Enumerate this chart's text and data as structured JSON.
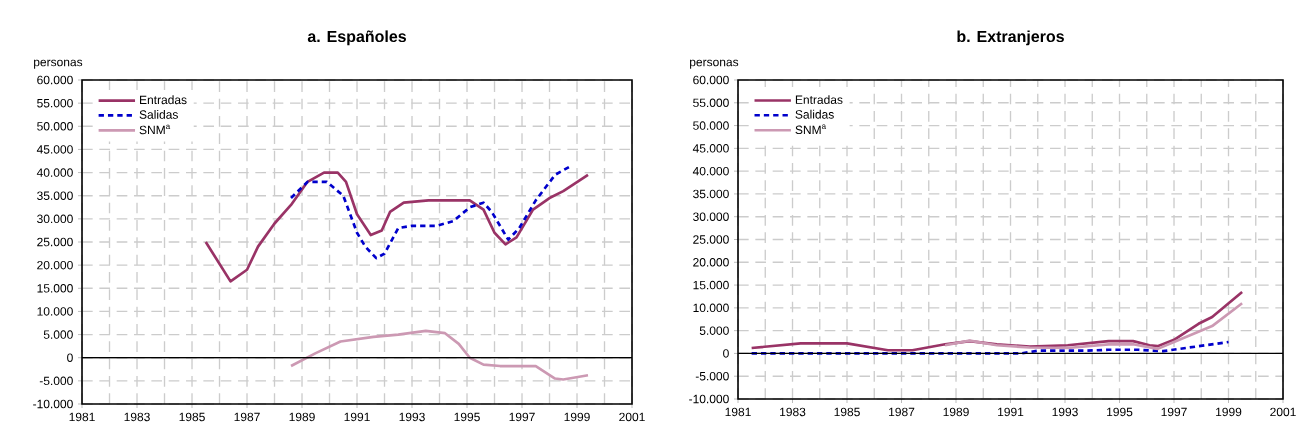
{
  "chart_data": [
    {
      "type": "line",
      "title": "a. Españoles",
      "ylabel": "personas",
      "xlim": [
        1981,
        2001
      ],
      "ylim": [
        -10000,
        60000
      ],
      "xticks": [
        1981,
        1983,
        1985,
        1987,
        1989,
        1991,
        1993,
        1995,
        1997,
        1999,
        2001
      ],
      "yticks": [
        {
          "value": -10000,
          "label": "-10.000"
        },
        {
          "value": -5000,
          "label": "-5.000"
        },
        0,
        {
          "value": 5000,
          "label": "5.000"
        },
        {
          "value": 10000,
          "label": "10.000"
        },
        {
          "value": 15000,
          "label": "15.000"
        },
        {
          "value": 20000,
          "label": "20.000"
        },
        {
          "value": 25000,
          "label": "25.000"
        },
        {
          "value": 30000,
          "label": "30.000"
        },
        {
          "value": 35000,
          "label": "35.000"
        },
        {
          "value": 40000,
          "label": "40.000"
        },
        {
          "value": 45000,
          "label": "45.000"
        },
        {
          "value": 50000,
          "label": "50.000"
        },
        {
          "value": 55000,
          "label": "55.000"
        },
        {
          "value": 60000,
          "label": "60.000"
        }
      ],
      "grid": true,
      "legend": "top left",
      "ref_lines": [
        {
          "axis": "y",
          "value": 0,
          "color": "#000000"
        }
      ],
      "series": [
        {
          "name": "Entradas",
          "color": "#993366",
          "line_style": "solid",
          "x": [
            1985.5,
            1986.4,
            1987,
            1987.4,
            1988,
            1988.6,
            1989.2,
            1989.8,
            1990.3,
            1990.6,
            1991,
            1991.5,
            1991.9,
            1992.2,
            1992.7,
            1993.6,
            1995.1,
            1995.6,
            1996,
            1996.4,
            1996.8,
            1997.4,
            1998,
            1998.5,
            1999.4
          ],
          "values": [
            25000,
            16500,
            19000,
            24000,
            29000,
            33000,
            38000,
            40000,
            40000,
            38000,
            31000,
            26500,
            27500,
            31500,
            33500,
            34000,
            34000,
            32000,
            27000,
            24500,
            26000,
            32000,
            34500,
            36000,
            39500
          ]
        },
        {
          "name": "Salidas",
          "color": "#0000cc",
          "line_style": "dashed",
          "x": [
            1988.6,
            1989.2,
            1989.9,
            1990.5,
            1991,
            1991.3,
            1991.7,
            1992,
            1992.5,
            1993,
            1993.9,
            1994.5,
            1995.1,
            1995.6,
            1995.9,
            1996.5,
            1996.9,
            1997.5,
            1998.2,
            1998.8
          ],
          "values": [
            34500,
            38000,
            38000,
            35000,
            27000,
            24000,
            21500,
            22500,
            28000,
            28500,
            28500,
            29500,
            32500,
            33500,
            31500,
            25500,
            28000,
            34000,
            39500,
            41500
          ]
        },
        {
          "name": "SNM$^{a}$",
          "color": "#cc99b3",
          "line_style": "solid",
          "x": [
            1988.6,
            1989.5,
            1990.4,
            1991.6,
            1992.5,
            1993.5,
            1994.2,
            1994.7,
            1995.1,
            1995.6,
            1996.2,
            1997.5,
            1998.2,
            1998.5,
            1999.4
          ],
          "values": [
            -1800,
            1000,
            3500,
            4500,
            5000,
            5800,
            5300,
            3000,
            0,
            -1500,
            -1800,
            -1800,
            -4500,
            -4700,
            -3800
          ]
        }
      ]
    },
    {
      "type": "line",
      "title": "b. Extranjeros",
      "ylabel": "personas",
      "xlim": [
        1981,
        2001
      ],
      "ylim": [
        -10000,
        60000
      ],
      "xticks": [
        1981,
        1983,
        1985,
        1987,
        1989,
        1991,
        1993,
        1995,
        1997,
        1999,
        2001
      ],
      "yticks": [
        {
          "value": -10000,
          "label": "-10.000"
        },
        {
          "value": -5000,
          "label": "-5.000"
        },
        0,
        {
          "value": 5000,
          "label": "5.000"
        },
        {
          "value": 10000,
          "label": "10.000"
        },
        {
          "value": 15000,
          "label": "15.000"
        },
        {
          "value": 20000,
          "label": "20.000"
        },
        {
          "value": 25000,
          "label": "25.000"
        },
        {
          "value": 30000,
          "label": "30.000"
        },
        {
          "value": 35000,
          "label": "35.000"
        },
        {
          "value": 40000,
          "label": "40.000"
        },
        {
          "value": 45000,
          "label": "45.000"
        },
        {
          "value": 50000,
          "label": "50.000"
        },
        {
          "value": 55000,
          "label": "55.000"
        },
        {
          "value": 60000,
          "label": "60.000"
        }
      ],
      "grid": true,
      "legend": "top left",
      "ref_lines": [
        {
          "axis": "y",
          "value": 0,
          "color": "#000000"
        }
      ],
      "series": [
        {
          "name": "Entradas",
          "color": "#993366",
          "line_style": "solid",
          "x": [
            1981.5,
            1983.3,
            1985,
            1986.5,
            1987.4,
            1988.6,
            1989.5,
            1990.5,
            1991.7,
            1993.1,
            1994.6,
            1995.5,
            1996.1,
            1996.4,
            1997,
            1997.9,
            1998.4,
            1999.5
          ],
          "values": [
            1200,
            2200,
            2200,
            700,
            700,
            2000,
            2700,
            2000,
            1500,
            1800,
            2700,
            2700,
            1800,
            1600,
            3000,
            6500,
            8000,
            13500
          ]
        },
        {
          "name": "Salidas",
          "color": "#0000cc",
          "line_style": "dashed",
          "x": [
            1981.5,
            1985,
            1988,
            1991.4,
            1992,
            1993.8,
            1994.6,
            1995.7,
            1996.6,
            1997.8,
            1999
          ],
          "values": [
            0,
            0,
            0,
            0,
            600,
            600,
            800,
            800,
            500,
            1500,
            2500
          ]
        },
        {
          "name": "SNM$^{a}$",
          "color": "#cc99b3",
          "line_style": "solid",
          "x": [
            1988.6,
            1989.5,
            1990.5,
            1991.7,
            1993.1,
            1994.6,
            1995.5,
            1996.4,
            1997,
            1998.4,
            1999.5
          ],
          "values": [
            1800,
            2800,
            1800,
            1300,
            1200,
            2000,
            2000,
            1000,
            2500,
            6000,
            11000
          ]
        }
      ]
    }
  ]
}
